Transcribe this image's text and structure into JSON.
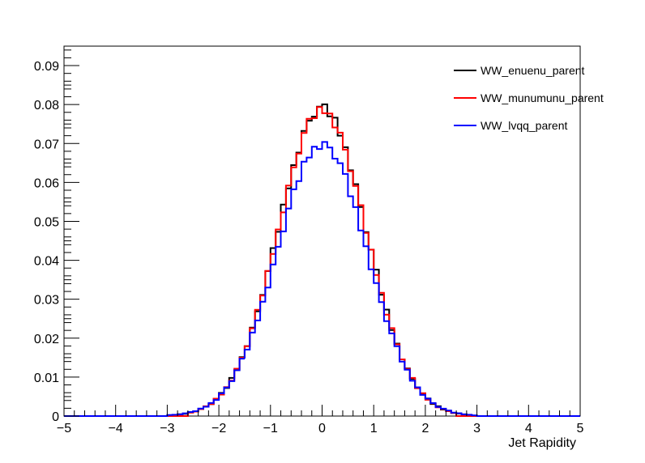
{
  "chart_data": {
    "type": "line",
    "style": "histogram-step",
    "xlabel": "Jet Rapidity",
    "ylabel": "",
    "xlim": [
      -5,
      5
    ],
    "ylim": [
      0,
      0.095
    ],
    "grid": false,
    "legend_position": "top-right",
    "bin_width": 0.1,
    "x_ticks": [
      -5,
      -4,
      -3,
      -2,
      -1,
      0,
      1,
      2,
      3,
      4,
      5
    ],
    "x_tick_labels": [
      "−5",
      "−4",
      "−3",
      "−2",
      "−1",
      "0",
      "1",
      "2",
      "3",
      "4",
      "5"
    ],
    "y_ticks": [
      0,
      0.01,
      0.02,
      0.03,
      0.04,
      0.05,
      0.06,
      0.07,
      0.08,
      0.09
    ],
    "y_tick_labels": [
      "0",
      "0.01",
      "0.02",
      "0.03",
      "0.04",
      "0.05",
      "0.06",
      "0.07",
      "0.08",
      "0.09"
    ],
    "series": [
      {
        "name": "WW_enuenu_parent",
        "color": "#000000",
        "peak": 0.079,
        "sigma": 0.85,
        "range": [
          -3.0,
          2.9
        ]
      },
      {
        "name": "WW_munumunu_parent",
        "color": "#ff0000",
        "peak": 0.0785,
        "sigma": 0.85,
        "range": [
          -2.6,
          2.6
        ]
      },
      {
        "name": "WW_lvqq_parent",
        "color": "#0000ff",
        "peak": 0.0698,
        "sigma": 0.87,
        "range": [
          -3.0,
          3.0
        ]
      }
    ]
  }
}
